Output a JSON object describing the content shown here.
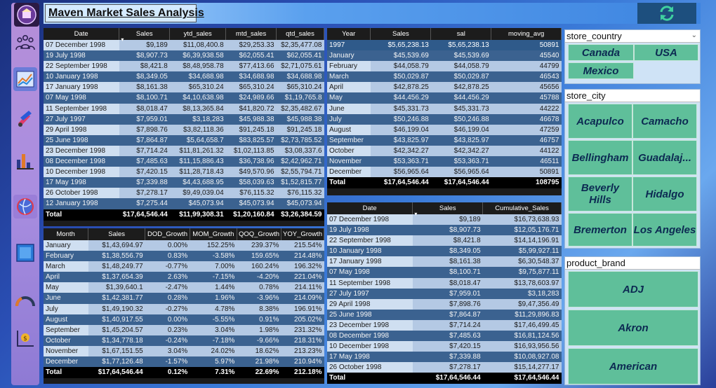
{
  "header": {
    "title": "Maven Market Sales Analysis"
  },
  "nav": {
    "logo_label": "MAVEN",
    "icons": [
      "people-icon",
      "line-chart-icon",
      "paint-brush-icon",
      "bar-chart-icon",
      "globe-icon",
      "notebook-icon",
      "gauge-icon",
      "dollar-chart-icon"
    ]
  },
  "daily_table": {
    "columns": [
      "Date",
      "Sales",
      "ytd_sales",
      "mtd_sales",
      "qtd_sales"
    ],
    "rows": [
      [
        "07 December 1998",
        "$9,189",
        "$11,08,400.8",
        "$29,253.33",
        "$2,35,477.08"
      ],
      [
        "19 July 1998",
        "$8,907.73",
        "$6,39,938.58",
        "$62,055.41",
        "$62,055.41"
      ],
      [
        "22 September 1998",
        "$8,421.8",
        "$8,48,958.78",
        "$77,413.66",
        "$2,71,075.61"
      ],
      [
        "10 January 1998",
        "$8,349.05",
        "$34,688.98",
        "$34,688.98",
        "$34,688.98"
      ],
      [
        "17 January 1998",
        "$8,161.38",
        "$65,310.24",
        "$65,310.24",
        "$65,310.24"
      ],
      [
        "07 May 1998",
        "$8,100.71",
        "$4,10,638.98",
        "$24,989.66",
        "$1,19,765.8"
      ],
      [
        "11 September 1998",
        "$8,018.47",
        "$8,13,365.84",
        "$41,820.72",
        "$2,35,482.67"
      ],
      [
        "27 July 1997",
        "$7,959.01",
        "$3,18,283",
        "$45,988.38",
        "$45,988.38"
      ],
      [
        "29 April 1998",
        "$7,898.76",
        "$3,82,118.36",
        "$91,245.18",
        "$91,245.18"
      ],
      [
        "25 June 1998",
        "$7,864.87",
        "$5,64,658.7",
        "$83,825.57",
        "$2,73,785.52"
      ],
      [
        "23 December 1998",
        "$7,714.24",
        "$11,81,261.32",
        "$1,02,113.85",
        "$3,08,337.6"
      ],
      [
        "08 December 1998",
        "$7,485.63",
        "$11,15,886.43",
        "$36,738.96",
        "$2,42,962.71"
      ],
      [
        "10 December 1998",
        "$7,420.15",
        "$11,28,718.43",
        "$49,570.96",
        "$2,55,794.71"
      ],
      [
        "17 May 1998",
        "$7,339.88",
        "$4,43,688.95",
        "$58,039.63",
        "$1,52,815.77"
      ],
      [
        "26 October 1998",
        "$7,278.17",
        "$9,49,039.04",
        "$76,115.32",
        "$76,115.32"
      ],
      [
        "12 January 1998",
        "$7,275.44",
        "$45,073.94",
        "$45,073.94",
        "$45,073.94"
      ]
    ],
    "total": [
      "Total",
      "$17,64,546.44",
      "$11,99,308.31",
      "$1,20,160.84",
      "$3,26,384.59"
    ]
  },
  "yearly_table": {
    "columns": [
      "Year",
      "Sales",
      "sal",
      "moving_avg"
    ],
    "rows": [
      [
        "1997",
        "$5,65,238.13",
        "$5,65,238.13",
        "50891"
      ],
      [
        "January",
        "$45,539.69",
        "$45,539.69",
        "45540"
      ],
      [
        "February",
        "$44,058.79",
        "$44,058.79",
        "44799"
      ],
      [
        "March",
        "$50,029.87",
        "$50,029.87",
        "46543"
      ],
      [
        "April",
        "$42,878.25",
        "$42,878.25",
        "45656"
      ],
      [
        "May",
        "$44,456.29",
        "$44,456.29",
        "45788"
      ],
      [
        "June",
        "$45,331.73",
        "$45,331.73",
        "44222"
      ],
      [
        "July",
        "$50,246.88",
        "$50,246.88",
        "46678"
      ],
      [
        "August",
        "$46,199.04",
        "$46,199.04",
        "47259"
      ],
      [
        "September",
        "$43,825.97",
        "$43,825.97",
        "46757"
      ],
      [
        "October",
        "$42,342.27",
        "$42,342.27",
        "44122"
      ],
      [
        "November",
        "$53,363.71",
        "$53,363.71",
        "46511"
      ],
      [
        "December",
        "$56,965.64",
        "$56,965.64",
        "50891"
      ]
    ],
    "total": [
      "Total",
      "$17,64,546.44",
      "$17,64,546.44",
      "108795"
    ]
  },
  "monthly_table": {
    "columns": [
      "Month",
      "Sales",
      "DOD_Growth",
      "MOM_Growth",
      "QOQ_Growth",
      "YOY_Growth"
    ],
    "rows": [
      [
        "January",
        "$1,43,694.97",
        "0.00%",
        "152.25%",
        "239.37%",
        "215.54%"
      ],
      [
        "February",
        "$1,38,556.79",
        "0.83%",
        "-3.58%",
        "159.65%",
        "214.48%"
      ],
      [
        "March",
        "$1,48,249.77",
        "-0.77%",
        "7.00%",
        "160.24%",
        "196.32%"
      ],
      [
        "April",
        "$1,37,654.39",
        "2.63%",
        "-7.15%",
        "-4.20%",
        "221.04%"
      ],
      [
        "May",
        "$1,39,640.1",
        "-2.47%",
        "1.44%",
        "0.78%",
        "214.11%"
      ],
      [
        "June",
        "$1,42,381.77",
        "0.28%",
        "1.96%",
        "-3.96%",
        "214.09%"
      ],
      [
        "July",
        "$1,49,190.32",
        "-0.27%",
        "4.78%",
        "8.38%",
        "196.91%"
      ],
      [
        "August",
        "$1,40,917.55",
        "0.00%",
        "-5.55%",
        "0.91%",
        "205.02%"
      ],
      [
        "September",
        "$1,45,204.57",
        "0.23%",
        "3.04%",
        "1.98%",
        "231.32%"
      ],
      [
        "October",
        "$1,34,778.18",
        "-0.24%",
        "-7.18%",
        "-9.66%",
        "218.31%"
      ],
      [
        "November",
        "$1,67,151.55",
        "3.04%",
        "24.02%",
        "18.62%",
        "213.23%"
      ],
      [
        "December",
        "$1,77,126.48",
        "-1.57%",
        "5.97%",
        "21.98%",
        "210.94%"
      ]
    ],
    "total": [
      "Total",
      "$17,64,546.44",
      "0.12%",
      "7.31%",
      "22.69%",
      "212.18%"
    ]
  },
  "cumulative_table": {
    "columns": [
      "Date",
      "Sales",
      "Cumulative_Sales"
    ],
    "rows": [
      [
        "07 December 1998",
        "$9,189",
        "$16,73,638.93"
      ],
      [
        "19 July 1998",
        "$8,907.73",
        "$12,05,176.71"
      ],
      [
        "22 September 1998",
        "$8,421.8",
        "$14,14,196.91"
      ],
      [
        "10 January 1998",
        "$8,349.05",
        "$5,99,927.11"
      ],
      [
        "17 January 1998",
        "$8,161.38",
        "$6,30,548.37"
      ],
      [
        "07 May 1998",
        "$8,100.71",
        "$9,75,877.11"
      ],
      [
        "11 September 1998",
        "$8,018.47",
        "$13,78,603.97"
      ],
      [
        "27 July 1997",
        "$7,959.01",
        "$3,18,283"
      ],
      [
        "29 April 1998",
        "$7,898.76",
        "$9,47,356.49"
      ],
      [
        "25 June 1998",
        "$7,864.87",
        "$11,29,896.83"
      ],
      [
        "23 December 1998",
        "$7,714.24",
        "$17,46,499.45"
      ],
      [
        "08 December 1998",
        "$7,485.63",
        "$16,81,124.56"
      ],
      [
        "10 December 1998",
        "$7,420.15",
        "$16,93,956.56"
      ],
      [
        "17 May 1998",
        "$7,339.88",
        "$10,08,927.08"
      ],
      [
        "26 October 1998",
        "$7,278.17",
        "$15,14,277.17"
      ]
    ],
    "total": [
      "Total",
      "$17,64,546.44",
      "$17,64,546.44"
    ]
  },
  "slicers": {
    "store_country": {
      "title": "store_country",
      "options": [
        "Canada",
        "USA",
        "Mexico"
      ]
    },
    "store_city": {
      "title": "store_city",
      "options": [
        "Acapulco",
        "Camacho",
        "Bellingham",
        "Guadalaj...",
        "Beverly Hills",
        "Hidalgo",
        "Bremerton",
        "Los Angeles"
      ]
    },
    "product_brand": {
      "title": "product_brand",
      "options": [
        "ADJ",
        "Akron",
        "American"
      ]
    }
  },
  "colors": {
    "row_light": "#b4c9e4",
    "row_dark": "#3b6290",
    "chip": "#5fbf9a",
    "header_bg": "#1c1c1c"
  }
}
